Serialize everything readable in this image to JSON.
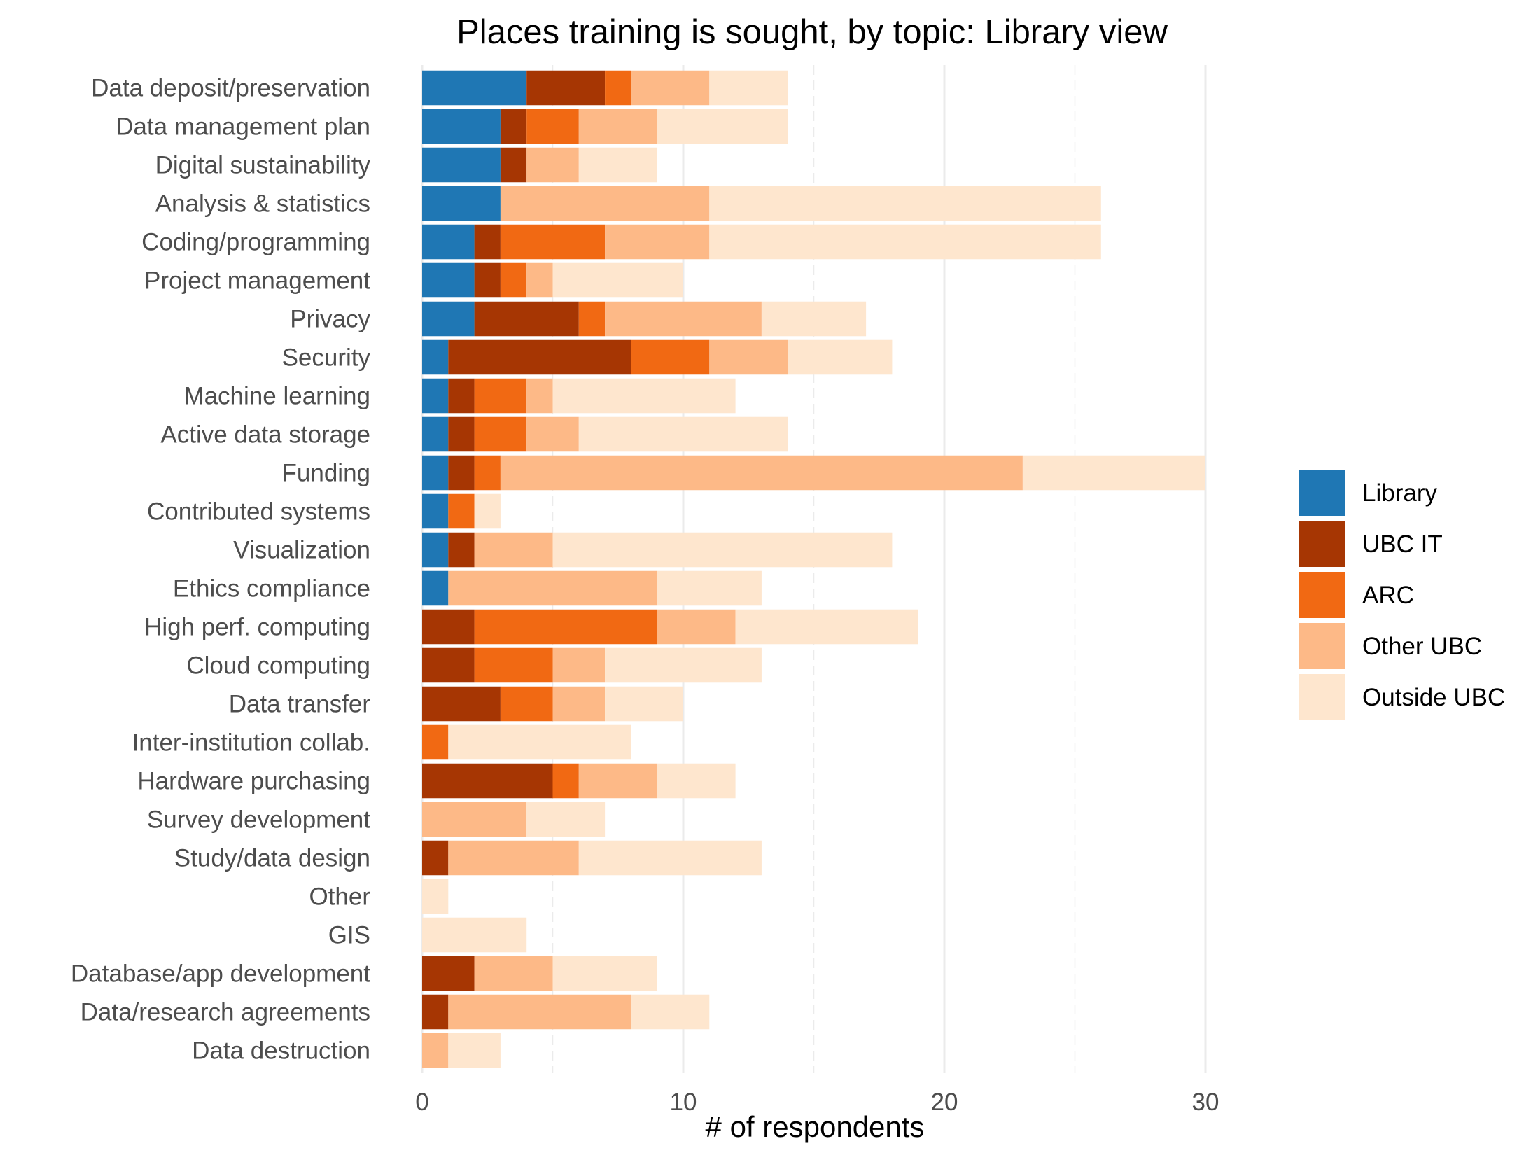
{
  "chart_data": {
    "type": "bar",
    "orientation": "horizontal",
    "stacked": true,
    "title": "Places training is sought, by topic: Library view",
    "xlabel": "# of respondents",
    "ylabel": "",
    "xlim": [
      0,
      30
    ],
    "x_ticks": [
      0,
      10,
      20,
      30
    ],
    "grid": true,
    "legend_position": "right",
    "categories": [
      "Data deposit/preservation",
      "Data management plan",
      "Digital sustainability",
      "Analysis & statistics",
      "Coding/programming",
      "Project management",
      "Privacy",
      "Security",
      "Machine learning",
      "Active data storage",
      "Funding",
      "Contributed systems",
      "Visualization",
      "Ethics compliance",
      "High perf. computing",
      "Cloud computing",
      "Data transfer",
      "Inter-institution collab.",
      "Hardware purchasing",
      "Survey development",
      "Study/data design",
      "Other",
      "GIS",
      "Database/app development",
      "Data/research agreements",
      "Data destruction"
    ],
    "series": [
      {
        "name": "Library",
        "color": "#1f77b4",
        "values": [
          4,
          3,
          3,
          3,
          2,
          2,
          2,
          1,
          1,
          1,
          1,
          1,
          1,
          1,
          0,
          0,
          0,
          0,
          0,
          0,
          0,
          0,
          0,
          0,
          0,
          0
        ]
      },
      {
        "name": "UBC IT",
        "color": "#a63603",
        "values": [
          3,
          1,
          1,
          0,
          1,
          1,
          4,
          7,
          1,
          1,
          1,
          0,
          1,
          0,
          2,
          2,
          3,
          0,
          5,
          0,
          1,
          0,
          0,
          2,
          1,
          0
        ]
      },
      {
        "name": "ARC",
        "color": "#f16913",
        "values": [
          1,
          2,
          0,
          0,
          4,
          1,
          1,
          3,
          2,
          2,
          1,
          1,
          0,
          0,
          7,
          3,
          2,
          1,
          1,
          0,
          0,
          0,
          0,
          0,
          0,
          0
        ]
      },
      {
        "name": "Other UBC",
        "color": "#fdb987",
        "values": [
          3,
          3,
          2,
          8,
          4,
          1,
          6,
          3,
          1,
          2,
          20,
          0,
          3,
          8,
          3,
          2,
          2,
          0,
          3,
          4,
          5,
          0,
          0,
          3,
          7,
          1
        ]
      },
      {
        "name": "Outside UBC",
        "color": "#fee6ce",
        "values": [
          3,
          5,
          3,
          15,
          15,
          5,
          4,
          4,
          7,
          8,
          7,
          1,
          13,
          4,
          7,
          6,
          3,
          7,
          3,
          3,
          7,
          1,
          4,
          4,
          3,
          2
        ]
      }
    ]
  }
}
